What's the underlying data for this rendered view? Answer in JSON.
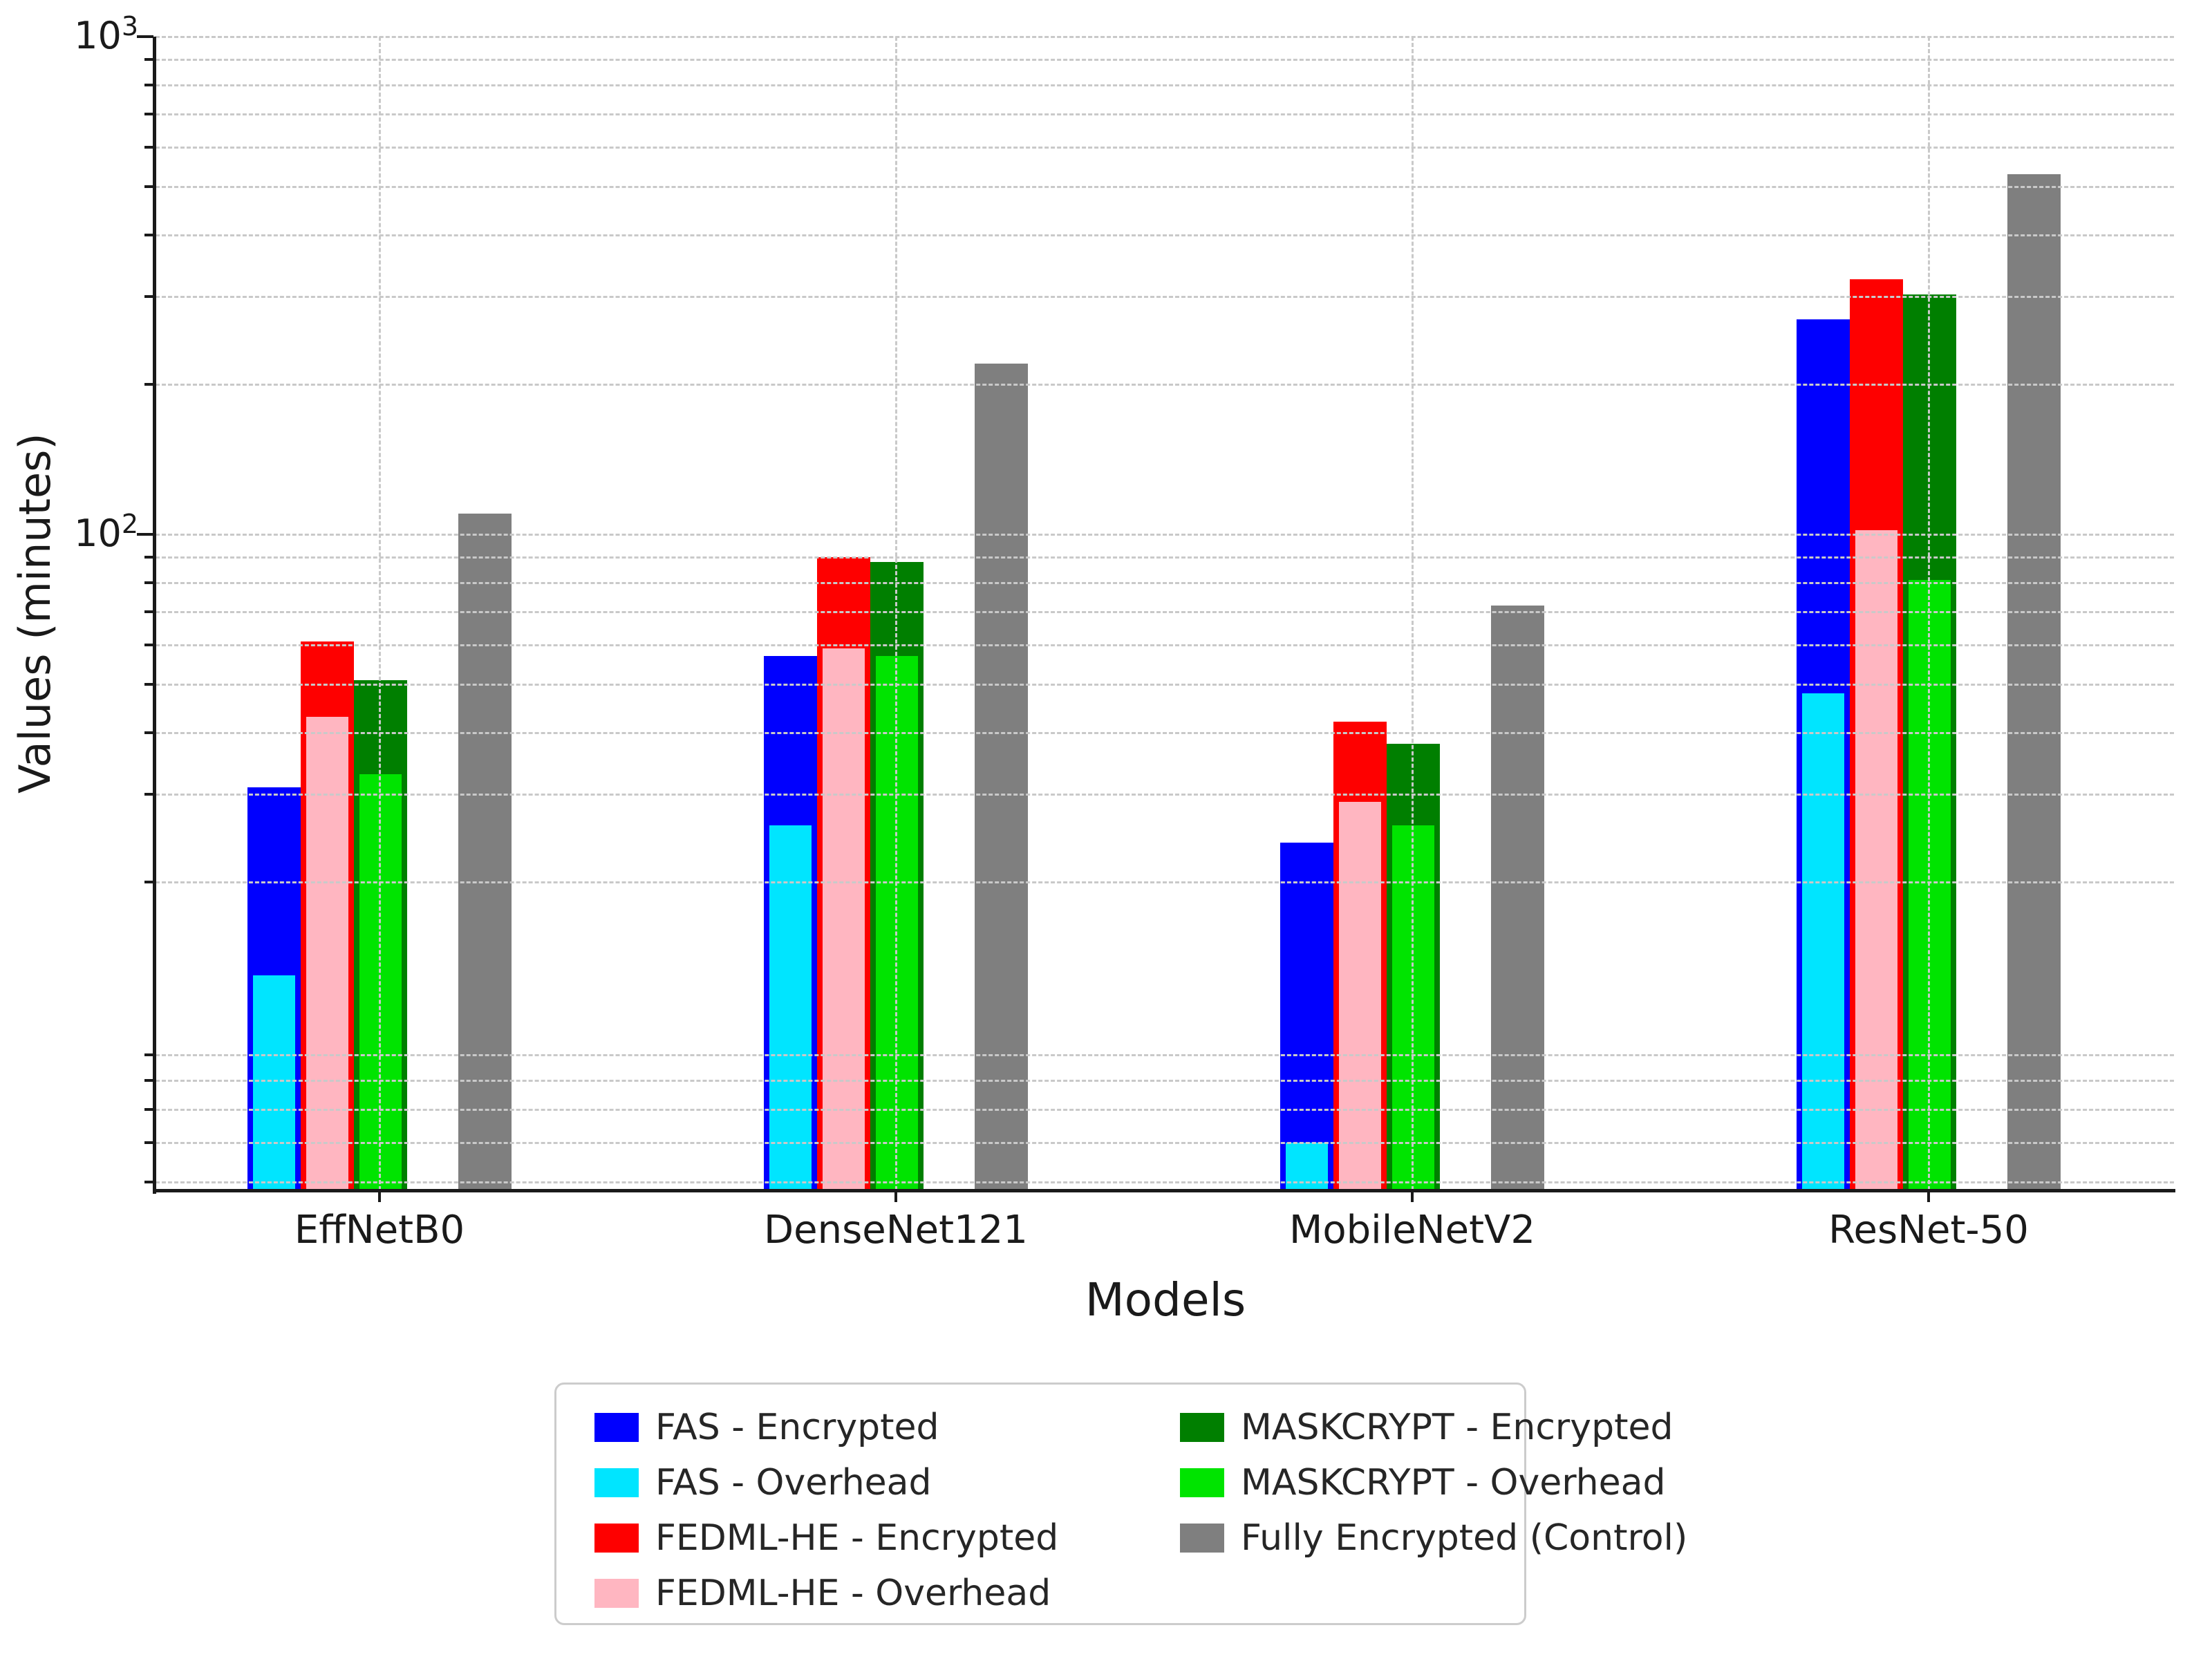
{
  "chart_data": {
    "type": "bar",
    "title": "",
    "xlabel": "Models",
    "ylabel": "Values (minutes)",
    "yscale": "log",
    "ylim": [
      4.8,
      1000
    ],
    "grid": "dashed, both axes, drawn over bars",
    "legend_position": "below plot, two columns",
    "categories": [
      "EffNetB0",
      "DenseNet121",
      "MobileNetV2",
      "ResNet-50"
    ],
    "series": [
      {
        "name": "FAS - Encrypted",
        "color": "#0000FE",
        "role": "encrypted-main",
        "slot": 0,
        "values": [
          31,
          57,
          24,
          270
        ]
      },
      {
        "name": "FAS - Overhead",
        "color": "#00E5FF",
        "role": "overhead-overlay",
        "slot": 0,
        "values": [
          13,
          26,
          6,
          48
        ]
      },
      {
        "name": "FEDML-HE - Encrypted",
        "color": "#FE0000",
        "role": "encrypted-main",
        "slot": 1,
        "values": [
          61,
          90,
          42,
          325
        ]
      },
      {
        "name": "FEDML-HE - Overhead",
        "color": "#FFB6C1",
        "role": "overhead-overlay",
        "slot": 1,
        "values": [
          43,
          59,
          29,
          102
        ]
      },
      {
        "name": "MASKCRYPT - Encrypted",
        "color": "#007F00",
        "role": "encrypted-main",
        "slot": 2,
        "values": [
          51,
          88,
          38,
          303
        ]
      },
      {
        "name": "MASKCRYPT - Overhead",
        "color": "#00E400",
        "role": "overhead-overlay",
        "slot": 2,
        "values": [
          33,
          57,
          26,
          81
        ]
      },
      {
        "name": "Fully Encrypted (Control)",
        "color": "#7F7F7F",
        "role": "control",
        "slot": 3,
        "values": [
          110,
          220,
          72,
          530
        ]
      }
    ],
    "gridline_values": [
      5,
      6,
      7,
      8,
      9,
      20,
      30,
      40,
      50,
      60,
      70,
      80,
      90,
      100,
      200,
      300,
      400,
      500,
      600,
      700,
      800,
      900,
      1000
    ],
    "major_tick_values": [
      100,
      1000
    ],
    "ytick_labels": [
      {
        "base": "10",
        "exp": "3",
        "value": 1000
      },
      {
        "base": "10",
        "exp": "2",
        "value": 100
      }
    ]
  },
  "legend": {
    "items": [
      {
        "label": "FAS - Encrypted",
        "color": "#0000FE",
        "column": 0,
        "row": 0
      },
      {
        "label": "FAS - Overhead",
        "color": "#00E5FF",
        "column": 0,
        "row": 1
      },
      {
        "label": "FEDML-HE - Encrypted",
        "color": "#FE0000",
        "column": 0,
        "row": 2
      },
      {
        "label": "FEDML-HE - Overhead",
        "color": "#FFB6C1",
        "column": 0,
        "row": 3
      },
      {
        "label": "MASKCRYPT - Encrypted",
        "color": "#007F00",
        "column": 1,
        "row": 0
      },
      {
        "label": "MASKCRYPT - Overhead",
        "color": "#00E400",
        "column": 1,
        "row": 1
      },
      {
        "label": "Fully Encrypted (Control)",
        "color": "#7F7F7F",
        "column": 1,
        "row": 2
      }
    ]
  }
}
